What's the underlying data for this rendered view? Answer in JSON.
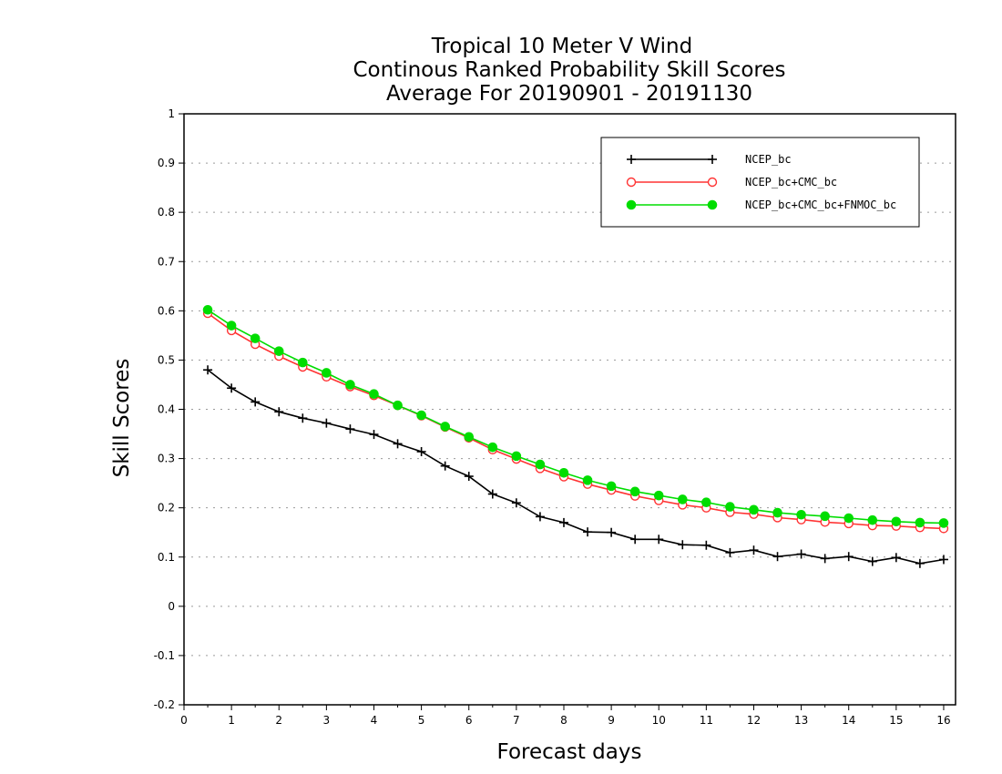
{
  "chart_data": {
    "type": "line",
    "title": [
      "Tropical 10 Meter V Wind",
      "Continous Ranked Probability Skill Scores",
      "Average For 20190901 - 20191130"
    ],
    "xlabel": "Forecast days",
    "ylabel": "Skill Scores",
    "xlim": [
      0,
      16.25
    ],
    "ylim": [
      -0.2,
      1
    ],
    "xticks": [
      "0",
      "1",
      "2",
      "3",
      "4",
      "5",
      "6",
      "7",
      "8",
      "9",
      "10",
      "11",
      "12",
      "13",
      "14",
      "15",
      "16"
    ],
    "yticks": [
      "-0.2",
      "-0.1",
      "0",
      "0.1",
      "0.2",
      "0.3",
      "0.4",
      "0.5",
      "0.6",
      "0.7",
      "0.8",
      "0.9",
      "1"
    ],
    "grid": "horizontal dotted",
    "legend_position": "top-right",
    "x": [
      0.5,
      1,
      1.5,
      2,
      2.5,
      3,
      3.5,
      4,
      4.5,
      5,
      5.5,
      6,
      6.5,
      7,
      7.5,
      8,
      8.5,
      9,
      9.5,
      10,
      10.5,
      11,
      11.5,
      12,
      12.5,
      13,
      13.5,
      14,
      14.5,
      15,
      15.5,
      16
    ],
    "series": [
      {
        "name": "NCEP_bc",
        "color": "#000000",
        "marker": "plus",
        "values": [
          0.48,
          0.443,
          0.415,
          0.395,
          0.382,
          0.372,
          0.36,
          0.349,
          0.33,
          0.314,
          0.285,
          0.264,
          0.228,
          0.21,
          0.182,
          0.17,
          0.151,
          0.15,
          0.136,
          0.136,
          0.125,
          0.124,
          0.109,
          0.114,
          0.101,
          0.106,
          0.097,
          0.101,
          0.091,
          0.099,
          0.087,
          0.095
        ]
      },
      {
        "name": "NCEP_bc+CMC_bc",
        "color": "#ff3333",
        "marker": "open-circle",
        "values": [
          0.595,
          0.56,
          0.532,
          0.508,
          0.486,
          0.466,
          0.446,
          0.428,
          0.408,
          0.387,
          0.364,
          0.342,
          0.318,
          0.299,
          0.28,
          0.263,
          0.248,
          0.236,
          0.224,
          0.215,
          0.206,
          0.2,
          0.191,
          0.187,
          0.18,
          0.176,
          0.171,
          0.168,
          0.164,
          0.163,
          0.16,
          0.158
        ]
      },
      {
        "name": "NCEP_bc+CMC_bc+FNMOC_bc",
        "color": "#00dd00",
        "marker": "filled-circle",
        "values": [
          0.602,
          0.57,
          0.544,
          0.518,
          0.495,
          0.474,
          0.45,
          0.431,
          0.408,
          0.388,
          0.365,
          0.344,
          0.323,
          0.305,
          0.288,
          0.271,
          0.256,
          0.244,
          0.233,
          0.225,
          0.217,
          0.211,
          0.202,
          0.196,
          0.19,
          0.186,
          0.183,
          0.179,
          0.175,
          0.172,
          0.17,
          0.169
        ]
      }
    ]
  }
}
